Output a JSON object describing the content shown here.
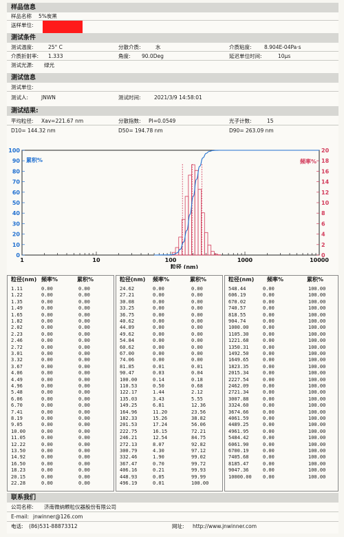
{
  "header": {
    "sample_info": "样品信息",
    "sample_name_label": "样品名称",
    "sample_name": "5%炭黑",
    "submit_unit_label": "送样单位:"
  },
  "conditions": {
    "title": "测试条件",
    "temp_label": "测试温度:",
    "temp": "25° C",
    "medium_label": "分散介质:",
    "medium": "水",
    "viscosity_label": "介质粘度:",
    "viscosity": "8.904E-04Pa·s",
    "refr_label": "介质折射率:",
    "refr": "1.333",
    "angle_label": "角度:",
    "angle": "90.0Deg",
    "delay_label": "延迟单位时间:",
    "delay": "10μs",
    "light_label": "测试光源:",
    "light": "绿光"
  },
  "test_info": {
    "title": "测试信息",
    "unit_label": "测试单位:",
    "person_label": "测试人:",
    "person": "JNWN",
    "time_label": "测试时间:",
    "time": "2021/3/9 14:58:01"
  },
  "results": {
    "title": "测试结果:",
    "avg_label": "平均粒径:",
    "avg": "Xav=221.67 nm",
    "pi_label": "分散指数:",
    "pi": "PI=0.0549",
    "photon_label": "光子计数:",
    "photon": "15",
    "d10": "D10= 144.32 nm",
    "d50": "D50= 194.78 nm",
    "d90": "D90= 263.09 nm"
  },
  "chart_data": {
    "type": "bar",
    "xlabel": "粒径 (nm)",
    "left_label": "累积%",
    "right_label": "频率%",
    "xscale": "log",
    "xlim": [
      1,
      10000
    ],
    "ylim_left": [
      0,
      100
    ],
    "ylim_right": [
      0,
      20
    ],
    "x_ticks": [
      "1",
      "10",
      "100",
      "1000",
      "10000"
    ],
    "y_left_ticks": [
      "0",
      "10",
      "20",
      "30",
      "40",
      "50",
      "60",
      "70",
      "80",
      "90",
      "100"
    ],
    "y_right_ticks": [
      "0",
      "2",
      "4",
      "6",
      "8",
      "10",
      "12",
      "14",
      "16",
      "18",
      "20"
    ],
    "series": [
      {
        "name": "频率%",
        "x": [
          110.53,
          122.17,
          135.03,
          149.25,
          164.96,
          182.33,
          201.53,
          222.75,
          246.21,
          272.13,
          300.79,
          332.46,
          367.47,
          406.16,
          448.93
        ],
        "values": [
          0.5,
          1.44,
          3.43,
          6.81,
          11.2,
          15.26,
          17.24,
          16.15,
          12.54,
          8.07,
          4.3,
          1.9,
          0.7,
          0.21,
          0.05
        ]
      },
      {
        "name": "累积%",
        "x": [
          100.0,
          110.53,
          122.17,
          135.03,
          149.25,
          164.96,
          182.33,
          201.53,
          222.75,
          246.21,
          272.13,
          300.79,
          332.46,
          367.47,
          406.16,
          448.93,
          496.19
        ],
        "values": [
          0.18,
          0.68,
          2.12,
          5.55,
          12.36,
          23.56,
          38.82,
          56.06,
          72.21,
          84.75,
          92.82,
          97.12,
          99.02,
          99.72,
          99.93,
          99.99,
          100.0
        ]
      }
    ],
    "markers": [
      144.32,
      194.78,
      263.09
    ]
  },
  "table": {
    "headers": {
      "size": "粒径(nm)",
      "freq": "频率%",
      "cum": "累积%"
    },
    "col1": [
      [
        "1.11",
        "0.00",
        "0.00"
      ],
      [
        "1.22",
        "0.00",
        "0.00"
      ],
      [
        "1.35",
        "0.00",
        "0.00"
      ],
      [
        "1.49",
        "0.00",
        "0.00"
      ],
      [
        "1.65",
        "0.00",
        "0.00"
      ],
      [
        "1.82",
        "0.00",
        "0.00"
      ],
      [
        "2.02",
        "0.00",
        "0.00"
      ],
      [
        "2.23",
        "0.00",
        "0.00"
      ],
      [
        "2.46",
        "0.00",
        "0.00"
      ],
      [
        "2.72",
        "0.00",
        "0.00"
      ],
      [
        "3.01",
        "0.00",
        "0.00"
      ],
      [
        "3.32",
        "0.00",
        "0.00"
      ],
      [
        "3.67",
        "0.00",
        "0.00"
      ],
      [
        "4.06",
        "0.00",
        "0.00"
      ],
      [
        "4.49",
        "0.00",
        "0.00"
      ],
      [
        "4.96",
        "0.00",
        "0.00"
      ],
      [
        "5.48",
        "0.00",
        "0.00"
      ],
      [
        "6.06",
        "0.00",
        "0.00"
      ],
      [
        "6.70",
        "0.00",
        "0.00"
      ],
      [
        "7.41",
        "0.00",
        "0.00"
      ],
      [
        "8.19",
        "0.00",
        "0.00"
      ],
      [
        "9.05",
        "0.00",
        "0.00"
      ],
      [
        "10.00",
        "0.00",
        "0.00"
      ],
      [
        "11.05",
        "0.00",
        "0.00"
      ],
      [
        "12.22",
        "0.00",
        "0.00"
      ],
      [
        "13.50",
        "0.00",
        "0.00"
      ],
      [
        "14.92",
        "0.00",
        "0.00"
      ],
      [
        "16.50",
        "0.00",
        "0.00"
      ],
      [
        "18.23",
        "0.00",
        "0.00"
      ],
      [
        "20.15",
        "0.00",
        "0.00"
      ],
      [
        "22.28",
        "0.00",
        "0.00"
      ]
    ],
    "col2": [
      [
        "24.62",
        "0.00",
        "0.00"
      ],
      [
        "27.21",
        "0.00",
        "0.00"
      ],
      [
        "30.08",
        "0.00",
        "0.00"
      ],
      [
        "33.25",
        "0.00",
        "0.00"
      ],
      [
        "36.75",
        "0.00",
        "0.00"
      ],
      [
        "40.62",
        "0.00",
        "0.00"
      ],
      [
        "44.89",
        "0.00",
        "0.00"
      ],
      [
        "49.62",
        "0.00",
        "0.00"
      ],
      [
        "54.84",
        "0.00",
        "0.00"
      ],
      [
        "60.62",
        "0.00",
        "0.00"
      ],
      [
        "67.00",
        "0.00",
        "0.00"
      ],
      [
        "74.06",
        "0.00",
        "0.00"
      ],
      [
        "81.85",
        "0.01",
        "0.01"
      ],
      [
        "90.47",
        "0.03",
        "0.04"
      ],
      [
        "100.00",
        "0.14",
        "0.18"
      ],
      [
        "110.53",
        "0.50",
        "0.68"
      ],
      [
        "122.17",
        "1.44",
        "2.12"
      ],
      [
        "135.03",
        "3.43",
        "5.55"
      ],
      [
        "149.25",
        "6.81",
        "12.36"
      ],
      [
        "164.96",
        "11.20",
        "23.56"
      ],
      [
        "182.33",
        "15.26",
        "38.82"
      ],
      [
        "201.53",
        "17.24",
        "56.06"
      ],
      [
        "222.75",
        "16.15",
        "72.21"
      ],
      [
        "246.21",
        "12.54",
        "84.75"
      ],
      [
        "272.13",
        "8.07",
        "92.82"
      ],
      [
        "300.79",
        "4.30",
        "97.12"
      ],
      [
        "332.46",
        "1.90",
        "99.02"
      ],
      [
        "367.47",
        "0.70",
        "99.72"
      ],
      [
        "406.16",
        "0.21",
        "99.93"
      ],
      [
        "448.93",
        "0.05",
        "99.99"
      ],
      [
        "496.19",
        "0.01",
        "100.00"
      ]
    ],
    "col3": [
      [
        "548.44",
        "0.00",
        "100.00"
      ],
      [
        "606.19",
        "0.00",
        "100.00"
      ],
      [
        "670.02",
        "0.00",
        "100.00"
      ],
      [
        "740.57",
        "0.00",
        "100.00"
      ],
      [
        "818.55",
        "0.00",
        "100.00"
      ],
      [
        "904.74",
        "0.00",
        "100.00"
      ],
      [
        "1000.00",
        "0.00",
        "100.00"
      ],
      [
        "1105.30",
        "0.00",
        "100.00"
      ],
      [
        "1221.68",
        "0.00",
        "100.00"
      ],
      [
        "1350.31",
        "0.00",
        "100.00"
      ],
      [
        "1492.50",
        "0.00",
        "100.00"
      ],
      [
        "1649.65",
        "0.00",
        "100.00"
      ],
      [
        "1823.35",
        "0.00",
        "100.00"
      ],
      [
        "2015.34",
        "0.00",
        "100.00"
      ],
      [
        "2227.54",
        "0.00",
        "100.00"
      ],
      [
        "2462.09",
        "0.00",
        "100.00"
      ],
      [
        "2721.34",
        "0.00",
        "100.00"
      ],
      [
        "3007.88",
        "0.00",
        "100.00"
      ],
      [
        "3324.60",
        "0.00",
        "100.00"
      ],
      [
        "3674.66",
        "0.00",
        "100.00"
      ],
      [
        "4061.59",
        "0.00",
        "100.00"
      ],
      [
        "4489.25",
        "0.00",
        "100.00"
      ],
      [
        "4961.95",
        "0.00",
        "100.00"
      ],
      [
        "5484.42",
        "0.00",
        "100.00"
      ],
      [
        "6061.90",
        "0.00",
        "100.00"
      ],
      [
        "6700.19",
        "0.00",
        "100.00"
      ],
      [
        "7405.68",
        "0.00",
        "100.00"
      ],
      [
        "8185.47",
        "0.00",
        "100.00"
      ],
      [
        "9047.36",
        "0.00",
        "100.00"
      ],
      [
        "10000.00",
        "0.00",
        "100.00"
      ],
      [
        "",
        "",
        ""
      ]
    ]
  },
  "contact": {
    "title": "联系我们",
    "company_label": "公司名称:",
    "company": "济南微纳颗粒仪器股份有限公司",
    "email_label": "E-mail:",
    "email": "jnwinner@126.com",
    "phone_label": "电话:",
    "phone": "(86)531-88873312",
    "web_label": "网址:",
    "web": "http://www.jnwinner.com"
  },
  "colors": {
    "blue": "#1f6fd0",
    "red": "#d23a5a",
    "header_bg": "#d7d7d3",
    "redact": "#ff1a1a"
  }
}
